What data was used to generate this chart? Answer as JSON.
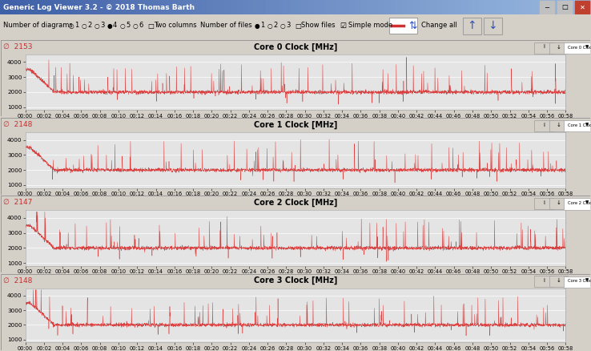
{
  "title_bar": "Generic Log Viewer 3.2 - © 2018 Thomas Barth",
  "cores": [
    {
      "title": "Core 0 Clock [MHz]",
      "avg": "2153",
      "label": "Core 0 Clock [MHz]"
    },
    {
      "title": "Core 1 Clock [MHz]",
      "avg": "2148",
      "label": "Core 1 Clock [MHz]"
    },
    {
      "title": "Core 2 Clock [MHz]",
      "avg": "2147",
      "label": "Core 2 Clock [MHz]"
    },
    {
      "title": "Core 3 Clock [MHz]",
      "avg": "2148",
      "label": "Core 3 Clock [MHz]"
    }
  ],
  "ylim": [
    800,
    4500
  ],
  "yticks": [
    1000,
    2000,
    3000,
    4000
  ],
  "time_total_seconds": 3480,
  "bg_color": "#d4d0c8",
  "plot_bg": "#e4e4e4",
  "line_color": "#d94040",
  "toolbar_bg": "#d4d0c8",
  "window_title_bg": "#5c80b8"
}
